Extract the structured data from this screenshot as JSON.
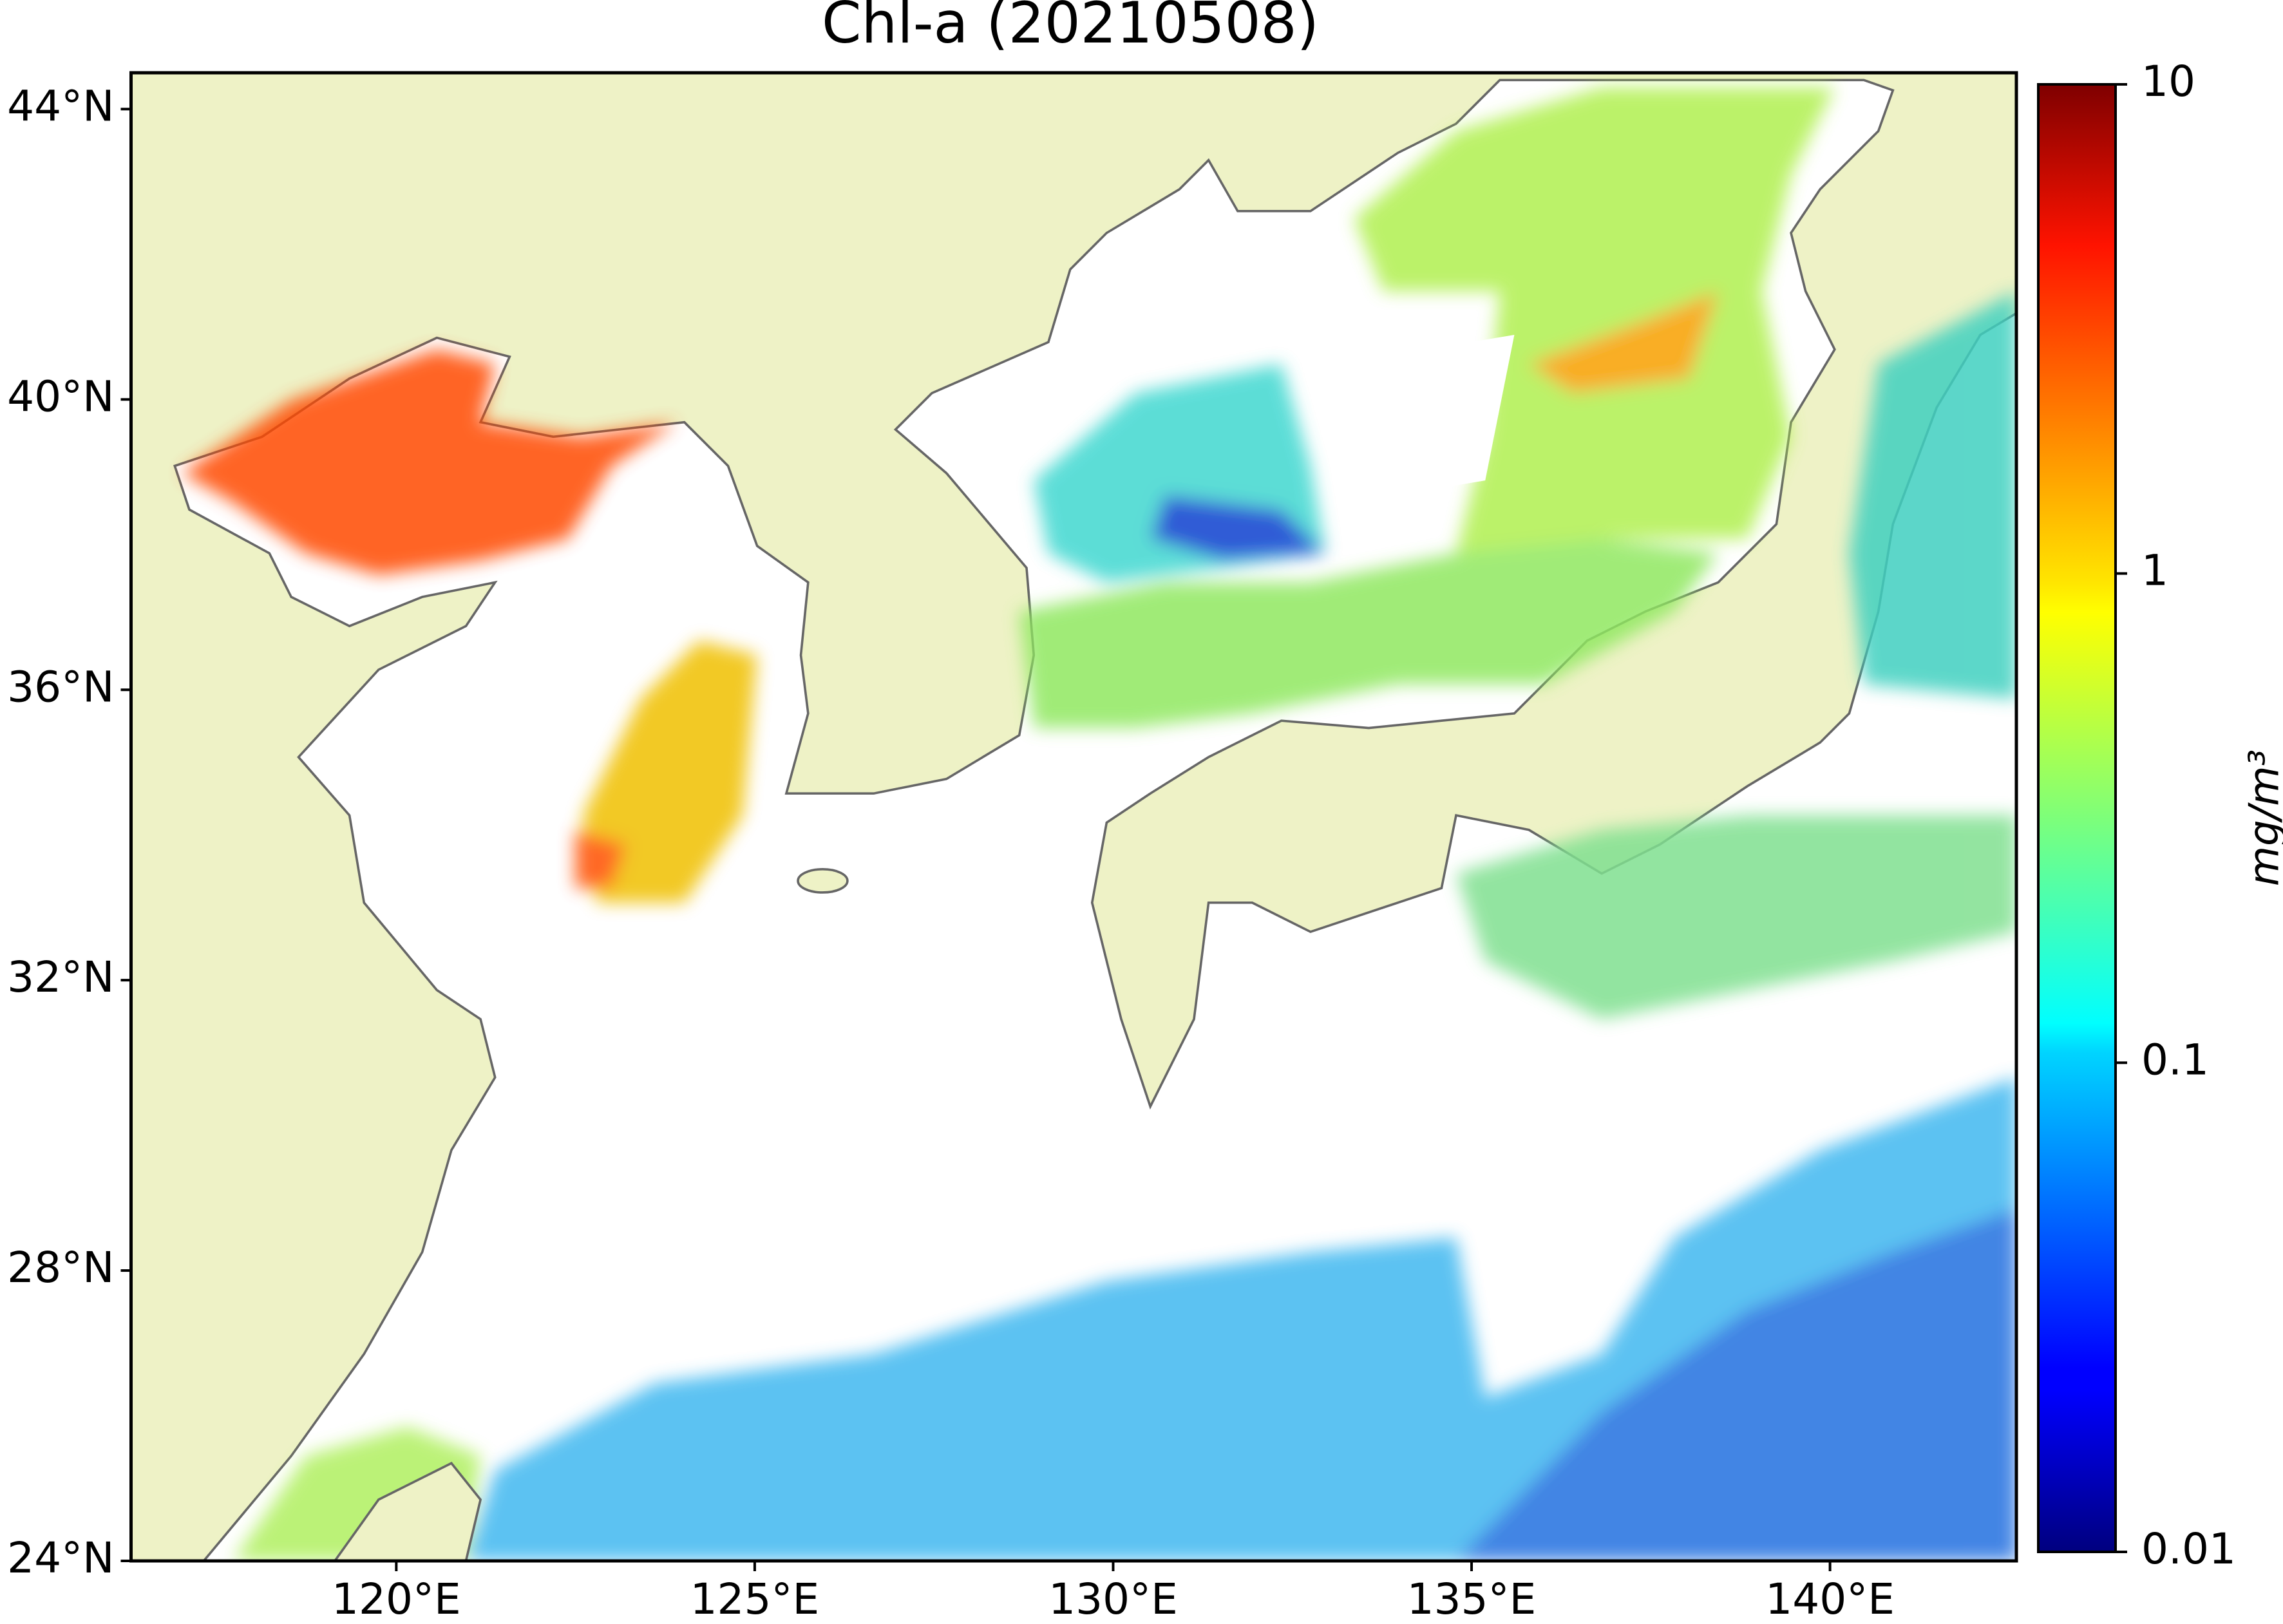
{
  "chart_data": {
    "type": "map",
    "title": "Chl-a (20210508)",
    "xlim": [
      116.3,
      142.6
    ],
    "ylim": [
      24,
      44.5
    ],
    "xticks": [
      {
        "value": 120,
        "label": "120°E"
      },
      {
        "value": 125,
        "label": "125°E"
      },
      {
        "value": 130,
        "label": "130°E"
      },
      {
        "value": 135,
        "label": "135°E"
      },
      {
        "value": 140,
        "label": "140°E"
      }
    ],
    "yticks": [
      {
        "value": 24,
        "label": "24°N"
      },
      {
        "value": 28,
        "label": "28°N"
      },
      {
        "value": 32,
        "label": "32°N"
      },
      {
        "value": 36,
        "label": "36°N"
      },
      {
        "value": 40,
        "label": "40°N"
      },
      {
        "value": 44,
        "label": "44°N"
      }
    ],
    "colorbar": {
      "label": "mg/m³",
      "scale": "log",
      "lim": [
        0.01,
        10
      ],
      "ticks": [
        0.01,
        0.1,
        1,
        10
      ],
      "colormap": "jet"
    }
  }
}
